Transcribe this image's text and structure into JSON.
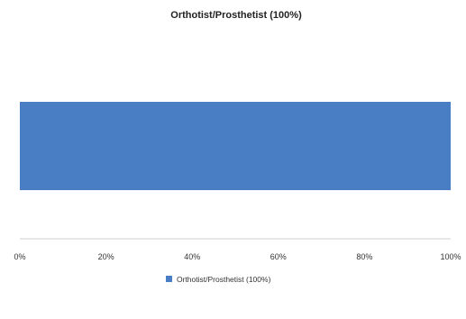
{
  "chart_data": {
    "type": "bar",
    "orientation": "horizontal",
    "title": "Orthotist/Prosthetist (100%)",
    "xlabel": "",
    "ylabel": "",
    "categories": [
      ""
    ],
    "series": [
      {
        "name": "Orthotist/Prosthetist (100%)",
        "values": [
          1.0
        ],
        "color": "#4a7ec4"
      }
    ],
    "xlim": [
      0,
      1
    ],
    "x_ticks": [
      0,
      0.2,
      0.4,
      0.6,
      0.8,
      1.0
    ],
    "x_tick_labels": [
      "0%",
      "20%",
      "40%",
      "60%",
      "80%",
      "100%"
    ],
    "grid": false,
    "legend_position": "bottom",
    "axis_color": "#cfcfcf"
  }
}
